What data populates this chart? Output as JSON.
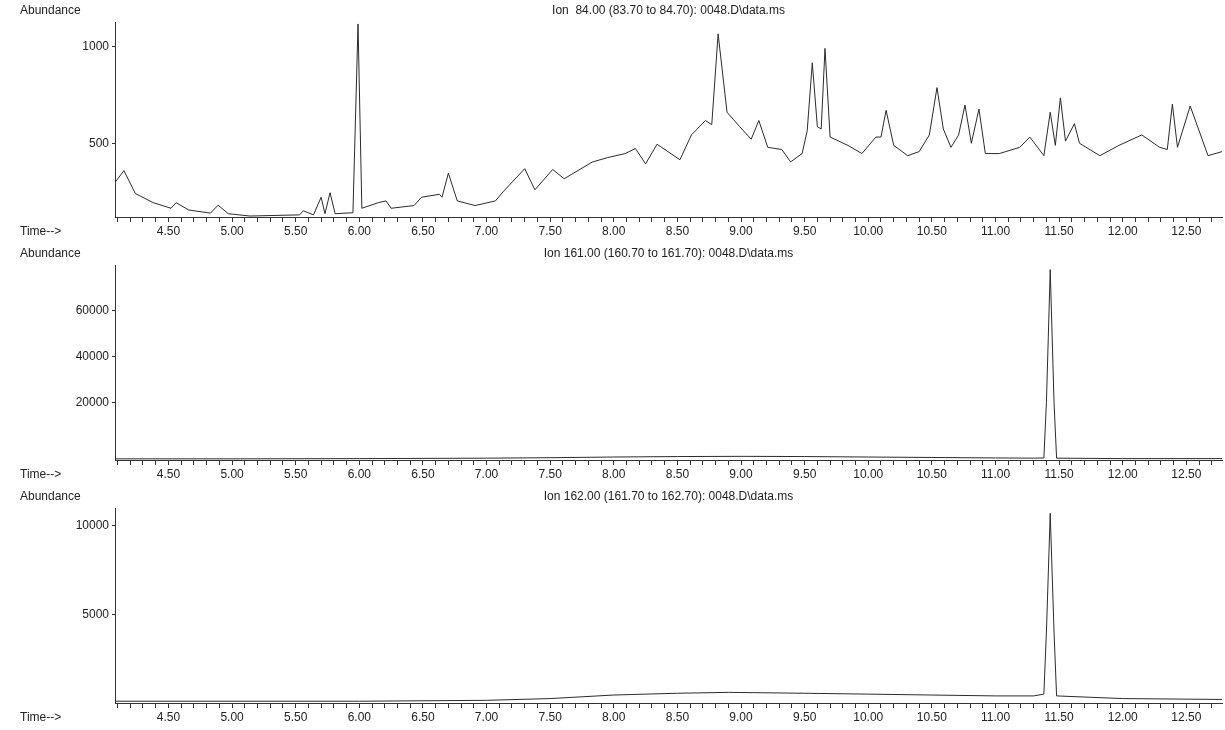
{
  "chart_data": [
    {
      "type": "line",
      "title": "Ion  84.00 (83.70 to 84.70): 0048.D\\data.ms",
      "ylabel": "Abundance",
      "xlabel": "Time-->",
      "color": "#2b2b2b",
      "marker": "none",
      "x": [
        4.08,
        4.15,
        4.24,
        4.38,
        4.52,
        4.56,
        4.66,
        4.83,
        4.89,
        4.97,
        5.14,
        5.53,
        5.56,
        5.64,
        5.7,
        5.73,
        5.77,
        5.81,
        5.95,
        5.99,
        6.02,
        6.15,
        6.21,
        6.25,
        6.43,
        6.49,
        6.63,
        6.65,
        6.7,
        6.77,
        6.91,
        7.07,
        7.13,
        7.3,
        7.38,
        7.52,
        7.61,
        7.83,
        7.95,
        8.09,
        8.17,
        8.25,
        8.34,
        8.52,
        8.61,
        8.72,
        8.77,
        8.82,
        8.89,
        8.99,
        9.08,
        9.14,
        9.21,
        9.32,
        9.39,
        9.48,
        9.52,
        9.56,
        9.6,
        9.63,
        9.66,
        9.7,
        9.84,
        9.95,
        10.06,
        10.1,
        10.14,
        10.2,
        10.31,
        10.4,
        10.48,
        10.54,
        10.59,
        10.65,
        10.71,
        10.76,
        10.81,
        10.87,
        10.92,
        11.03,
        11.19,
        11.27,
        11.38,
        11.43,
        11.47,
        11.51,
        11.55,
        11.62,
        11.66,
        11.82,
        11.97,
        12.15,
        12.29,
        12.35,
        12.39,
        12.43,
        12.53,
        12.67,
        12.78
      ],
      "values": [
        298,
        359,
        241,
        194,
        165,
        194,
        156,
        140,
        181,
        137,
        125,
        131,
        152,
        131,
        222,
        137,
        245,
        137,
        142,
        1115,
        165,
        194,
        203,
        165,
        179,
        222,
        237,
        222,
        346,
        203,
        179,
        203,
        250,
        369,
        260,
        365,
        317,
        403,
        426,
        447,
        473,
        394,
        495,
        415,
        543,
        617,
        596,
        1064,
        660,
        585,
        521,
        617,
        479,
        468,
        404,
        447,
        564,
        915,
        585,
        574,
        989,
        532,
        489,
        447,
        532,
        532,
        670,
        489,
        436,
        457,
        543,
        787,
        574,
        479,
        543,
        697,
        500,
        676,
        447,
        447,
        479,
        532,
        436,
        660,
        489,
        734,
        511,
        601,
        500,
        436,
        489,
        543,
        479,
        468,
        702,
        479,
        692,
        436,
        457
      ],
      "xlim": [
        4.08,
        12.78
      ],
      "ylim": [
        120,
        1125
      ],
      "yticks": [
        500,
        1000
      ],
      "xticks": [
        {
          "value": 4.1,
          "label": null
        },
        {
          "value": 4.2,
          "label": null
        },
        {
          "value": 4.3,
          "label": null
        },
        {
          "value": 4.4,
          "label": null
        },
        {
          "value": 4.5,
          "label": "4.50"
        },
        {
          "value": 4.6,
          "label": null
        },
        {
          "value": 4.7,
          "label": null
        },
        {
          "value": 4.8,
          "label": null
        },
        {
          "value": 4.9,
          "label": null
        },
        {
          "value": 5,
          "label": "5.00"
        },
        {
          "value": 5.1,
          "label": null
        },
        {
          "value": 5.2,
          "label": null
        },
        {
          "value": 5.3,
          "label": null
        },
        {
          "value": 5.4,
          "label": null
        },
        {
          "value": 5.5,
          "label": "5.50"
        },
        {
          "value": 5.6,
          "label": null
        },
        {
          "value": 5.7,
          "label": null
        },
        {
          "value": 5.8,
          "label": null
        },
        {
          "value": 5.9,
          "label": null
        },
        {
          "value": 6,
          "label": "6.00"
        },
        {
          "value": 6.1,
          "label": null
        },
        {
          "value": 6.2,
          "label": null
        },
        {
          "value": 6.3,
          "label": null
        },
        {
          "value": 6.4,
          "label": null
        },
        {
          "value": 6.5,
          "label": "6.50"
        },
        {
          "value": 6.6,
          "label": null
        },
        {
          "value": 6.7,
          "label": null
        },
        {
          "value": 6.8,
          "label": null
        },
        {
          "value": 6.9,
          "label": null
        },
        {
          "value": 7,
          "label": "7.00"
        },
        {
          "value": 7.1,
          "label": null
        },
        {
          "value": 7.2,
          "label": null
        },
        {
          "value": 7.3,
          "label": null
        },
        {
          "value": 7.4,
          "label": null
        },
        {
          "value": 7.5,
          "label": "7.50"
        },
        {
          "value": 7.6,
          "label": null
        },
        {
          "value": 7.7,
          "label": null
        },
        {
          "value": 7.8,
          "label": null
        },
        {
          "value": 7.9,
          "label": null
        },
        {
          "value": 8,
          "label": "8.00"
        },
        {
          "value": 8.1,
          "label": null
        },
        {
          "value": 8.2,
          "label": null
        },
        {
          "value": 8.3,
          "label": null
        },
        {
          "value": 8.4,
          "label": null
        },
        {
          "value": 8.5,
          "label": "8.50"
        },
        {
          "value": 8.6,
          "label": null
        },
        {
          "value": 8.7,
          "label": null
        },
        {
          "value": 8.8,
          "label": null
        },
        {
          "value": 8.9,
          "label": null
        },
        {
          "value": 9,
          "label": "9.00"
        },
        {
          "value": 9.1,
          "label": null
        },
        {
          "value": 9.2,
          "label": null
        },
        {
          "value": 9.3,
          "label": null
        },
        {
          "value": 9.4,
          "label": null
        },
        {
          "value": 9.5,
          "label": "9.50"
        },
        {
          "value": 9.6,
          "label": null
        },
        {
          "value": 9.7,
          "label": null
        },
        {
          "value": 9.8,
          "label": null
        },
        {
          "value": 9.9,
          "label": null
        },
        {
          "value": 10,
          "label": "10.00"
        },
        {
          "value": 10.1,
          "label": null
        },
        {
          "value": 10.2,
          "label": null
        },
        {
          "value": 10.3,
          "label": null
        },
        {
          "value": 10.4,
          "label": null
        },
        {
          "value": 10.5,
          "label": "10.50"
        },
        {
          "value": 10.6,
          "label": null
        },
        {
          "value": 10.7,
          "label": null
        },
        {
          "value": 10.8,
          "label": null
        },
        {
          "value": 10.9,
          "label": null
        },
        {
          "value": 11,
          "label": "11.00"
        },
        {
          "value": 11.1,
          "label": null
        },
        {
          "value": 11.2,
          "label": null
        },
        {
          "value": 11.3,
          "label": null
        },
        {
          "value": 11.4,
          "label": null
        },
        {
          "value": 11.5,
          "label": "11.50"
        },
        {
          "value": 11.6,
          "label": null
        },
        {
          "value": 11.7,
          "label": null
        },
        {
          "value": 11.8,
          "label": null
        },
        {
          "value": 11.9,
          "label": null
        },
        {
          "value": 12,
          "label": "12.00"
        },
        {
          "value": 12.1,
          "label": null
        },
        {
          "value": 12.2,
          "label": null
        },
        {
          "value": 12.3,
          "label": null
        },
        {
          "value": 12.4,
          "label": null
        },
        {
          "value": 12.5,
          "label": "12.50"
        },
        {
          "value": 12.6,
          "label": null
        },
        {
          "value": 12.7,
          "label": null
        }
      ]
    },
    {
      "type": "line",
      "title": "Ion 161.00 (160.70 to 161.70): 0048.D\\data.ms",
      "ylabel": "Abundance",
      "xlabel": "Time-->",
      "color": "#2b2b2b",
      "marker": "none",
      "x": [
        4.08,
        5.0,
        6.0,
        7.0,
        7.5,
        8.0,
        8.5,
        9.0,
        9.5,
        10.0,
        10.5,
        11.0,
        11.3,
        11.38,
        11.4,
        11.43,
        11.46,
        11.48,
        12.0,
        12.78
      ],
      "values": [
        -4500,
        -4500,
        -4400,
        -4200,
        -4000,
        -3700,
        -3500,
        -3400,
        -3500,
        -3700,
        -3900,
        -4100,
        -4200,
        -4100,
        20000,
        78000,
        20000,
        -4200,
        -4400,
        -4400
      ],
      "xlim": [
        4.08,
        12.78
      ],
      "ylim": [
        -5000,
        80000
      ],
      "yticks": [
        20000,
        40000,
        60000
      ],
      "xticks": [
        {
          "value": 4.1,
          "label": null
        },
        {
          "value": 4.2,
          "label": null
        },
        {
          "value": 4.3,
          "label": null
        },
        {
          "value": 4.4,
          "label": null
        },
        {
          "value": 4.5,
          "label": "4.50"
        },
        {
          "value": 4.6,
          "label": null
        },
        {
          "value": 4.7,
          "label": null
        },
        {
          "value": 4.8,
          "label": null
        },
        {
          "value": 4.9,
          "label": null
        },
        {
          "value": 5,
          "label": "5.00"
        },
        {
          "value": 5.1,
          "label": null
        },
        {
          "value": 5.2,
          "label": null
        },
        {
          "value": 5.3,
          "label": null
        },
        {
          "value": 5.4,
          "label": null
        },
        {
          "value": 5.5,
          "label": "5.50"
        },
        {
          "value": 5.6,
          "label": null
        },
        {
          "value": 5.7,
          "label": null
        },
        {
          "value": 5.8,
          "label": null
        },
        {
          "value": 5.9,
          "label": null
        },
        {
          "value": 6,
          "label": "6.00"
        },
        {
          "value": 6.1,
          "label": null
        },
        {
          "value": 6.2,
          "label": null
        },
        {
          "value": 6.3,
          "label": null
        },
        {
          "value": 6.4,
          "label": null
        },
        {
          "value": 6.5,
          "label": "6.50"
        },
        {
          "value": 6.6,
          "label": null
        },
        {
          "value": 6.7,
          "label": null
        },
        {
          "value": 6.8,
          "label": null
        },
        {
          "value": 6.9,
          "label": null
        },
        {
          "value": 7,
          "label": "7.00"
        },
        {
          "value": 7.1,
          "label": null
        },
        {
          "value": 7.2,
          "label": null
        },
        {
          "value": 7.3,
          "label": null
        },
        {
          "value": 7.4,
          "label": null
        },
        {
          "value": 7.5,
          "label": "7.50"
        },
        {
          "value": 7.6,
          "label": null
        },
        {
          "value": 7.7,
          "label": null
        },
        {
          "value": 7.8,
          "label": null
        },
        {
          "value": 7.9,
          "label": null
        },
        {
          "value": 8,
          "label": "8.00"
        },
        {
          "value": 8.1,
          "label": null
        },
        {
          "value": 8.2,
          "label": null
        },
        {
          "value": 8.3,
          "label": null
        },
        {
          "value": 8.4,
          "label": null
        },
        {
          "value": 8.5,
          "label": "8.50"
        },
        {
          "value": 8.6,
          "label": null
        },
        {
          "value": 8.7,
          "label": null
        },
        {
          "value": 8.8,
          "label": null
        },
        {
          "value": 8.9,
          "label": null
        },
        {
          "value": 9,
          "label": "9.00"
        },
        {
          "value": 9.1,
          "label": null
        },
        {
          "value": 9.2,
          "label": null
        },
        {
          "value": 9.3,
          "label": null
        },
        {
          "value": 9.4,
          "label": null
        },
        {
          "value": 9.5,
          "label": "9.50"
        },
        {
          "value": 9.6,
          "label": null
        },
        {
          "value": 9.7,
          "label": null
        },
        {
          "value": 9.8,
          "label": null
        },
        {
          "value": 9.9,
          "label": null
        },
        {
          "value": 10,
          "label": "10.00"
        },
        {
          "value": 10.1,
          "label": null
        },
        {
          "value": 10.2,
          "label": null
        },
        {
          "value": 10.3,
          "label": null
        },
        {
          "value": 10.4,
          "label": null
        },
        {
          "value": 10.5,
          "label": "10.50"
        },
        {
          "value": 10.6,
          "label": null
        },
        {
          "value": 10.7,
          "label": null
        },
        {
          "value": 10.8,
          "label": null
        },
        {
          "value": 10.9,
          "label": null
        },
        {
          "value": 11,
          "label": "11.00"
        },
        {
          "value": 11.1,
          "label": null
        },
        {
          "value": 11.2,
          "label": null
        },
        {
          "value": 11.3,
          "label": null
        },
        {
          "value": 11.4,
          "label": null
        },
        {
          "value": 11.5,
          "label": "11.50"
        },
        {
          "value": 11.6,
          "label": null
        },
        {
          "value": 11.7,
          "label": null
        },
        {
          "value": 11.8,
          "label": null
        },
        {
          "value": 11.9,
          "label": null
        },
        {
          "value": 12,
          "label": "12.00"
        },
        {
          "value": 12.1,
          "label": null
        },
        {
          "value": 12.2,
          "label": null
        },
        {
          "value": 12.3,
          "label": null
        },
        {
          "value": 12.4,
          "label": null
        },
        {
          "value": 12.5,
          "label": "12.50"
        },
        {
          "value": 12.6,
          "label": null
        },
        {
          "value": 12.7,
          "label": null
        }
      ]
    },
    {
      "type": "line",
      "title": "Ion 162.00 (161.70 to 162.70): 0048.D\\data.ms",
      "ylabel": "Abundance",
      "xlabel": "Time-->",
      "color": "#2b2b2b",
      "marker": "none",
      "x": [
        4.08,
        5.0,
        6.0,
        7.0,
        7.5,
        8.0,
        8.5,
        8.9,
        9.5,
        10.0,
        10.5,
        11.0,
        11.3,
        11.38,
        11.4,
        11.43,
        11.46,
        11.48,
        12.0,
        12.78
      ],
      "values": [
        100,
        100,
        100,
        150,
        250,
        450,
        550,
        600,
        550,
        500,
        450,
        400,
        400,
        500,
        4000,
        10700,
        4000,
        400,
        250,
        200
      ],
      "xlim": [
        4.08,
        12.78
      ],
      "ylim": [
        0,
        11000
      ],
      "yticks": [
        5000,
        10000
      ],
      "xticks": [
        {
          "value": 4.1,
          "label": null
        },
        {
          "value": 4.2,
          "label": null
        },
        {
          "value": 4.3,
          "label": null
        },
        {
          "value": 4.4,
          "label": null
        },
        {
          "value": 4.5,
          "label": "4.50"
        },
        {
          "value": 4.6,
          "label": null
        },
        {
          "value": 4.7,
          "label": null
        },
        {
          "value": 4.8,
          "label": null
        },
        {
          "value": 4.9,
          "label": null
        },
        {
          "value": 5,
          "label": "5.00"
        },
        {
          "value": 5.1,
          "label": null
        },
        {
          "value": 5.2,
          "label": null
        },
        {
          "value": 5.3,
          "label": null
        },
        {
          "value": 5.4,
          "label": null
        },
        {
          "value": 5.5,
          "label": "5.50"
        },
        {
          "value": 5.6,
          "label": null
        },
        {
          "value": 5.7,
          "label": null
        },
        {
          "value": 5.8,
          "label": null
        },
        {
          "value": 5.9,
          "label": null
        },
        {
          "value": 6,
          "label": "6.00"
        },
        {
          "value": 6.1,
          "label": null
        },
        {
          "value": 6.2,
          "label": null
        },
        {
          "value": 6.3,
          "label": null
        },
        {
          "value": 6.4,
          "label": null
        },
        {
          "value": 6.5,
          "label": "6.50"
        },
        {
          "value": 6.6,
          "label": null
        },
        {
          "value": 6.7,
          "label": null
        },
        {
          "value": 6.8,
          "label": null
        },
        {
          "value": 6.9,
          "label": null
        },
        {
          "value": 7,
          "label": "7.00"
        },
        {
          "value": 7.1,
          "label": null
        },
        {
          "value": 7.2,
          "label": null
        },
        {
          "value": 7.3,
          "label": null
        },
        {
          "value": 7.4,
          "label": null
        },
        {
          "value": 7.5,
          "label": "7.50"
        },
        {
          "value": 7.6,
          "label": null
        },
        {
          "value": 7.7,
          "label": null
        },
        {
          "value": 7.8,
          "label": null
        },
        {
          "value": 7.9,
          "label": null
        },
        {
          "value": 8,
          "label": "8.00"
        },
        {
          "value": 8.1,
          "label": null
        },
        {
          "value": 8.2,
          "label": null
        },
        {
          "value": 8.3,
          "label": null
        },
        {
          "value": 8.4,
          "label": null
        },
        {
          "value": 8.5,
          "label": "8.50"
        },
        {
          "value": 8.6,
          "label": null
        },
        {
          "value": 8.7,
          "label": null
        },
        {
          "value": 8.8,
          "label": null
        },
        {
          "value": 8.9,
          "label": null
        },
        {
          "value": 9,
          "label": "9.00"
        },
        {
          "value": 9.1,
          "label": null
        },
        {
          "value": 9.2,
          "label": null
        },
        {
          "value": 9.3,
          "label": null
        },
        {
          "value": 9.4,
          "label": null
        },
        {
          "value": 9.5,
          "label": "9.50"
        },
        {
          "value": 9.6,
          "label": null
        },
        {
          "value": 9.7,
          "label": null
        },
        {
          "value": 9.8,
          "label": null
        },
        {
          "value": 9.9,
          "label": null
        },
        {
          "value": 10,
          "label": "10.00"
        },
        {
          "value": 10.1,
          "label": null
        },
        {
          "value": 10.2,
          "label": null
        },
        {
          "value": 10.3,
          "label": null
        },
        {
          "value": 10.4,
          "label": null
        },
        {
          "value": 10.5,
          "label": "10.50"
        },
        {
          "value": 10.6,
          "label": null
        },
        {
          "value": 10.7,
          "label": null
        },
        {
          "value": 10.8,
          "label": null
        },
        {
          "value": 10.9,
          "label": null
        },
        {
          "value": 11,
          "label": "11.00"
        },
        {
          "value": 11.1,
          "label": null
        },
        {
          "value": 11.2,
          "label": null
        },
        {
          "value": 11.3,
          "label": null
        },
        {
          "value": 11.4,
          "label": null
        },
        {
          "value": 11.5,
          "label": "11.50"
        },
        {
          "value": 11.6,
          "label": null
        },
        {
          "value": 11.7,
          "label": null
        },
        {
          "value": 11.8,
          "label": null
        },
        {
          "value": 11.9,
          "label": null
        },
        {
          "value": 12,
          "label": "12.00"
        },
        {
          "value": 12.1,
          "label": null
        },
        {
          "value": 12.2,
          "label": null
        },
        {
          "value": 12.3,
          "label": null
        },
        {
          "value": 12.4,
          "label": null
        },
        {
          "value": 12.5,
          "label": "12.50"
        },
        {
          "value": 12.6,
          "label": null
        },
        {
          "value": 12.7,
          "label": null
        }
      ]
    }
  ]
}
